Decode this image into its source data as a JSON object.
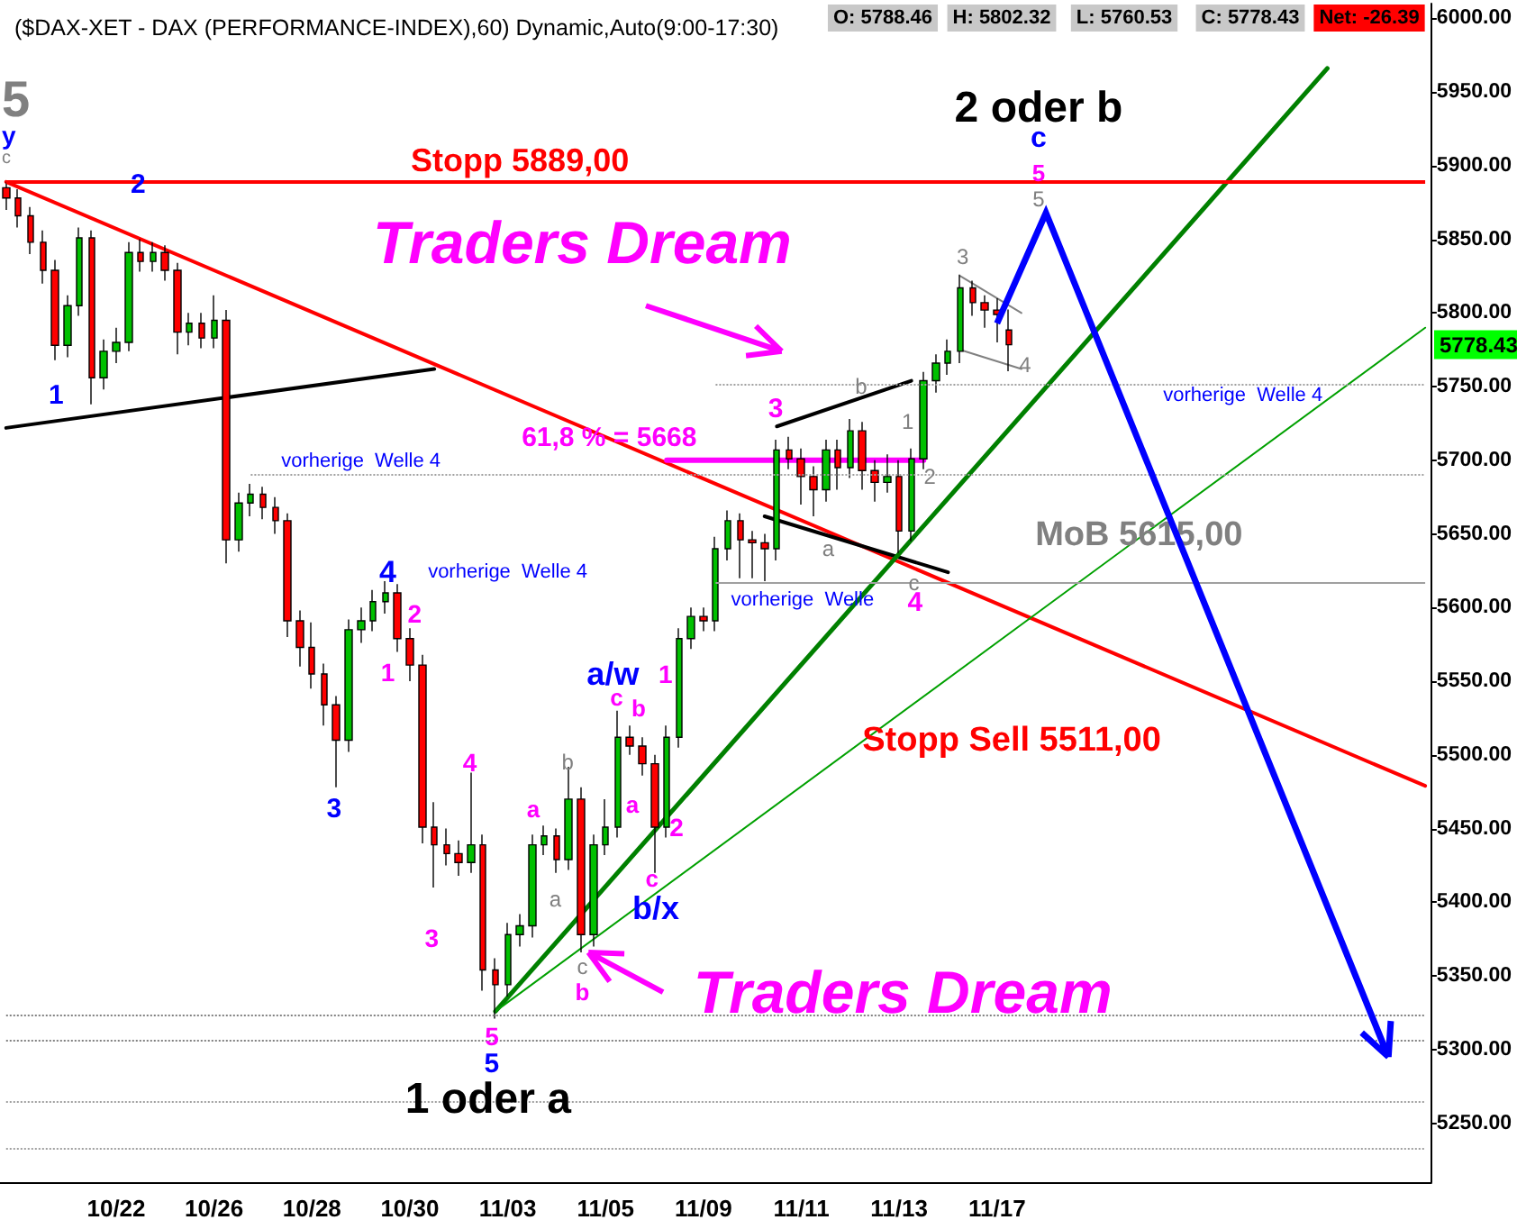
{
  "chart_data": {
    "type": "candlestick",
    "title": "($DAX-XET - DAX (PERFORMANCE-INDEX),60) Dynamic,Auto(9:00-17:30)",
    "categories": [
      null,
      null,
      null,
      null,
      null,
      null,
      null,
      null,
      null,
      "10/22",
      null,
      null,
      null,
      null,
      null,
      null,
      null,
      "10/26",
      null,
      null,
      null,
      null,
      null,
      null,
      null,
      "10/28",
      null,
      null,
      null,
      null,
      null,
      null,
      null,
      "10/30",
      null,
      null,
      null,
      null,
      null,
      null,
      null,
      "11/03",
      null,
      null,
      null,
      null,
      null,
      null,
      null,
      "11/05",
      null,
      null,
      null,
      null,
      null,
      null,
      null,
      "11/09",
      null,
      null,
      null,
      null,
      null,
      null,
      null,
      "11/11",
      null,
      null,
      null,
      null,
      null,
      null,
      null,
      "11/13",
      null,
      null,
      null,
      null,
      null,
      null,
      null,
      "11/17",
      null,
      null,
      null,
      null,
      null,
      null,
      null,
      null,
      null,
      null,
      null,
      null,
      null,
      null,
      null,
      null,
      null,
      null,
      null,
      null,
      null,
      null,
      null,
      null,
      null,
      null,
      null,
      null,
      null,
      null,
      null,
      null,
      null,
      null,
      null
    ],
    "ohlc": [
      [
        5885,
        5889,
        5870,
        5878
      ],
      [
        5878,
        5884,
        5858,
        5866
      ],
      [
        5866,
        5872,
        5840,
        5848
      ],
      [
        5848,
        5856,
        5820,
        5829
      ],
      [
        5829,
        5836,
        5768,
        5778
      ],
      [
        5778,
        5812,
        5770,
        5805
      ],
      [
        5805,
        5858,
        5798,
        5851
      ],
      [
        5851,
        5856,
        5738,
        5756
      ],
      [
        5756,
        5782,
        5748,
        5774
      ],
      [
        5774,
        5790,
        5766,
        5780
      ],
      [
        5780,
        5848,
        5774,
        5841
      ],
      [
        5841,
        5850,
        5828,
        5835
      ],
      [
        5835,
        5848,
        5828,
        5841
      ],
      [
        5841,
        5846,
        5822,
        5829
      ],
      [
        5829,
        5834,
        5772,
        5787
      ],
      [
        5787,
        5800,
        5778,
        5793
      ],
      [
        5793,
        5800,
        5776,
        5783
      ],
      [
        5783,
        5812,
        5776,
        5795
      ],
      [
        5795,
        5802,
        5630,
        5646
      ],
      [
        5646,
        5678,
        5638,
        5671
      ],
      [
        5671,
        5684,
        5662,
        5677
      ],
      [
        5677,
        5682,
        5660,
        5668
      ],
      [
        5668,
        5675,
        5650,
        5659
      ],
      [
        5659,
        5664,
        5580,
        5591
      ],
      [
        5591,
        5598,
        5560,
        5573
      ],
      [
        5573,
        5590,
        5545,
        5555
      ],
      [
        5555,
        5562,
        5520,
        5534
      ],
      [
        5534,
        5540,
        5478,
        5510
      ],
      [
        5510,
        5592,
        5502,
        5585
      ],
      [
        5585,
        5600,
        5576,
        5591
      ],
      [
        5591,
        5612,
        5584,
        5604
      ],
      [
        5604,
        5618,
        5596,
        5610
      ],
      [
        5610,
        5616,
        5570,
        5579
      ],
      [
        5579,
        5586,
        5550,
        5561
      ],
      [
        5561,
        5568,
        5440,
        5451
      ],
      [
        5451,
        5468,
        5410,
        5439
      ],
      [
        5439,
        5450,
        5425,
        5433
      ],
      [
        5433,
        5442,
        5418,
        5427
      ],
      [
        5427,
        5488,
        5420,
        5439
      ],
      [
        5439,
        5446,
        5340,
        5354
      ],
      [
        5354,
        5362,
        5321,
        5344
      ],
      [
        5344,
        5386,
        5336,
        5378
      ],
      [
        5378,
        5392,
        5370,
        5384
      ],
      [
        5384,
        5446,
        5376,
        5439
      ],
      [
        5439,
        5452,
        5432,
        5445
      ],
      [
        5445,
        5450,
        5420,
        5429
      ],
      [
        5429,
        5492,
        5422,
        5470
      ],
      [
        5470,
        5478,
        5366,
        5378
      ],
      [
        5378,
        5446,
        5370,
        5439
      ],
      [
        5439,
        5470,
        5432,
        5451
      ],
      [
        5451,
        5530,
        5444,
        5512
      ],
      [
        5512,
        5520,
        5500,
        5506
      ],
      [
        5506,
        5512,
        5486,
        5494
      ],
      [
        5494,
        5500,
        5420,
        5451
      ],
      [
        5451,
        5520,
        5444,
        5512
      ],
      [
        5512,
        5586,
        5505,
        5579
      ],
      [
        5579,
        5600,
        5572,
        5594
      ],
      [
        5594,
        5600,
        5584,
        5591
      ],
      [
        5591,
        5648,
        5584,
        5640
      ],
      [
        5640,
        5666,
        5632,
        5659
      ],
      [
        5659,
        5664,
        5620,
        5646
      ],
      [
        5646,
        5652,
        5620,
        5644
      ],
      [
        5644,
        5650,
        5618,
        5640
      ],
      [
        5640,
        5714,
        5632,
        5707
      ],
      [
        5707,
        5716,
        5694,
        5701
      ],
      [
        5701,
        5708,
        5670,
        5689
      ],
      [
        5689,
        5696,
        5662,
        5680
      ],
      [
        5680,
        5714,
        5672,
        5707
      ],
      [
        5707,
        5714,
        5680,
        5695
      ],
      [
        5695,
        5728,
        5688,
        5720
      ],
      [
        5720,
        5726,
        5680,
        5693
      ],
      [
        5693,
        5700,
        5672,
        5685
      ],
      [
        5685,
        5704,
        5678,
        5689
      ],
      [
        5689,
        5700,
        5637,
        5652
      ],
      [
        5652,
        5708,
        5645,
        5701
      ],
      [
        5701,
        5760,
        5694,
        5754
      ],
      [
        5754,
        5772,
        5746,
        5766
      ],
      [
        5766,
        5782,
        5758,
        5774
      ],
      [
        5774,
        5826,
        5766,
        5817
      ],
      [
        5817,
        5822,
        5798,
        5807
      ],
      [
        5807,
        5812,
        5790,
        5802
      ],
      [
        5802,
        5810,
        5780,
        5799
      ],
      [
        5788.46,
        5802.32,
        5760.53,
        5778.43
      ],
      null,
      null,
      null,
      null,
      null,
      null,
      null,
      null,
      null,
      null,
      null,
      null,
      null,
      null,
      null,
      null,
      null,
      null,
      null,
      null,
      null,
      null,
      null,
      null,
      null,
      null,
      null,
      null,
      null,
      null,
      null,
      null,
      null,
      null
    ],
    "series": [
      {
        "type": "line",
        "color": "#ff0000",
        "values": [
          5889,
          null,
          null,
          null,
          null,
          null,
          null,
          null,
          null,
          null,
          null,
          null,
          null,
          null,
          null,
          null,
          null,
          null,
          null,
          null,
          null,
          null,
          null,
          null,
          null,
          null,
          null,
          null,
          null,
          null,
          null,
          null,
          null,
          null,
          null,
          null,
          null,
          null,
          null,
          null,
          null,
          null,
          null,
          null,
          null,
          null,
          null,
          null,
          null,
          null,
          null,
          null,
          null,
          null,
          null,
          null,
          null,
          null,
          null,
          null,
          null,
          null,
          null,
          null,
          null,
          null,
          null,
          null,
          null,
          null,
          null,
          null,
          null,
          null,
          null,
          null,
          null,
          null,
          null,
          null,
          null,
          null,
          null,
          null,
          null,
          null,
          null,
          null,
          null,
          null,
          null,
          null,
          null,
          null,
          null,
          null,
          null,
          null,
          null,
          null,
          null,
          null,
          null,
          null,
          null,
          null,
          null,
          null,
          null,
          null,
          null,
          null,
          null,
          null,
          null,
          null,
          5479
        ]
      },
      {
        "type": "line",
        "color": "#000000",
        "values": [
          5722,
          null,
          null,
          null,
          null,
          null,
          null,
          null,
          null,
          null,
          null,
          null,
          null,
          null,
          null,
          null,
          null,
          null,
          null,
          null,
          null,
          null,
          null,
          null,
          null,
          null,
          null,
          null,
          null,
          null,
          null,
          null,
          null,
          null,
          null,
          5762,
          null,
          null,
          null,
          null,
          null,
          null,
          null,
          null,
          null,
          null,
          null,
          null,
          null,
          null,
          null,
          null,
          null,
          null,
          null,
          null,
          null,
          null,
          null,
          null,
          null,
          null,
          null,
          null,
          null,
          null,
          null,
          null,
          null,
          null,
          null,
          null,
          null,
          null,
          null,
          null,
          null,
          null,
          null,
          null,
          null,
          null,
          null,
          null,
          null,
          null,
          null,
          null,
          null,
          null,
          null,
          null,
          null,
          null,
          null,
          null,
          null,
          null,
          null,
          null,
          null,
          null,
          null,
          null,
          null,
          null,
          null,
          null,
          null,
          null,
          null,
          null,
          null,
          null,
          null,
          null,
          null
        ]
      },
      {
        "type": "line",
        "color": "#000000",
        "values": [
          null,
          null,
          null,
          null,
          null,
          null,
          null,
          null,
          null,
          null,
          null,
          null,
          null,
          null,
          null,
          null,
          null,
          null,
          null,
          null,
          null,
          null,
          null,
          null,
          null,
          null,
          null,
          null,
          null,
          null,
          null,
          null,
          null,
          null,
          null,
          null,
          null,
          null,
          null,
          null,
          null,
          null,
          null,
          null,
          null,
          null,
          null,
          null,
          null,
          null,
          null,
          null,
          null,
          null,
          null,
          null,
          null,
          null,
          null,
          null,
          null,
          null,
          null,
          5723,
          null,
          null,
          null,
          null,
          null,
          null,
          null,
          null,
          null,
          null,
          5754,
          null,
          null,
          null,
          null,
          null,
          null,
          null,
          null,
          null,
          null,
          null,
          null,
          null,
          null,
          null,
          null,
          null,
          null,
          null,
          null,
          null,
          null,
          null,
          null,
          null,
          null,
          null,
          null,
          null,
          null,
          null,
          null,
          null,
          null,
          null,
          null,
          null,
          null,
          null,
          null,
          null,
          null
        ]
      },
      {
        "type": "line",
        "color": "#000000",
        "values": [
          null,
          null,
          null,
          null,
          null,
          null,
          null,
          null,
          null,
          null,
          null,
          null,
          null,
          null,
          null,
          null,
          null,
          null,
          null,
          null,
          null,
          null,
          null,
          null,
          null,
          null,
          null,
          null,
          null,
          null,
          null,
          null,
          null,
          null,
          null,
          null,
          null,
          null,
          null,
          null,
          null,
          null,
          null,
          null,
          null,
          null,
          null,
          null,
          null,
          null,
          null,
          null,
          null,
          null,
          null,
          null,
          null,
          null,
          null,
          null,
          null,
          null,
          5662,
          null,
          null,
          null,
          null,
          null,
          null,
          null,
          null,
          null,
          null,
          null,
          null,
          null,
          null,
          5624,
          null,
          null,
          null,
          null,
          null,
          null,
          null,
          null,
          null,
          null,
          null,
          null,
          null,
          null,
          null,
          null,
          null,
          null,
          null,
          null,
          null,
          null,
          null,
          null,
          null,
          null,
          null,
          null,
          null,
          null,
          null,
          null,
          null,
          null,
          null,
          null,
          null,
          null,
          null
        ]
      },
      {
        "type": "line",
        "color": "#808080",
        "values": [
          null,
          null,
          null,
          null,
          null,
          null,
          null,
          null,
          null,
          null,
          null,
          null,
          null,
          null,
          null,
          null,
          null,
          null,
          null,
          null,
          null,
          null,
          null,
          null,
          null,
          null,
          null,
          null,
          null,
          null,
          null,
          null,
          null,
          null,
          null,
          null,
          null,
          null,
          null,
          null,
          null,
          null,
          null,
          null,
          null,
          null,
          null,
          null,
          null,
          null,
          null,
          null,
          null,
          null,
          null,
          null,
          null,
          null,
          null,
          null,
          null,
          null,
          null,
          null,
          null,
          null,
          null,
          null,
          null,
          null,
          null,
          null,
          null,
          null,
          null,
          null,
          null,
          null,
          5825,
          null,
          null,
          null,
          null,
          5800,
          null,
          null,
          null,
          null,
          null,
          null,
          null,
          null,
          null,
          null,
          null,
          null,
          null,
          null,
          null,
          null,
          null,
          null,
          null,
          null,
          null,
          null,
          null,
          null,
          null,
          null,
          null,
          null,
          null,
          null,
          null,
          null,
          null
        ]
      },
      {
        "type": "line",
        "color": "#808080",
        "values": [
          null,
          null,
          null,
          null,
          null,
          null,
          null,
          null,
          null,
          null,
          null,
          null,
          null,
          null,
          null,
          null,
          null,
          null,
          null,
          null,
          null,
          null,
          null,
          null,
          null,
          null,
          null,
          null,
          null,
          null,
          null,
          null,
          null,
          null,
          null,
          null,
          null,
          null,
          null,
          null,
          null,
          null,
          null,
          null,
          null,
          null,
          null,
          null,
          null,
          null,
          null,
          null,
          null,
          null,
          null,
          null,
          null,
          null,
          null,
          null,
          null,
          null,
          null,
          null,
          null,
          null,
          null,
          null,
          null,
          null,
          null,
          null,
          null,
          null,
          null,
          null,
          null,
          null,
          5775,
          null,
          null,
          null,
          null,
          5762,
          null,
          null,
          null,
          null,
          null,
          null,
          null,
          null,
          null,
          null,
          null,
          null,
          null,
          null,
          null,
          null,
          null,
          null,
          null,
          null,
          null,
          null,
          null,
          null,
          null,
          null,
          null,
          null,
          null,
          null,
          null,
          null,
          null
        ]
      },
      {
        "type": "line",
        "color": "#008000",
        "values": [
          null,
          null,
          null,
          null,
          null,
          null,
          null,
          null,
          null,
          null,
          null,
          null,
          null,
          null,
          null,
          null,
          null,
          null,
          null,
          null,
          null,
          null,
          null,
          null,
          null,
          null,
          null,
          null,
          null,
          null,
          null,
          null,
          null,
          null,
          null,
          null,
          null,
          null,
          null,
          null,
          5326,
          null,
          null,
          null,
          null,
          null,
          null,
          null,
          null,
          null,
          null,
          null,
          null,
          null,
          null,
          null,
          null,
          null,
          null,
          null,
          null,
          null,
          null,
          null,
          null,
          null,
          null,
          null,
          null,
          null,
          null,
          null,
          null,
          null,
          null,
          null,
          null,
          null,
          null,
          null,
          null,
          null,
          null,
          null,
          null,
          null,
          null,
          null,
          null,
          null,
          null,
          null,
          null,
          null,
          null,
          null,
          null,
          null,
          null,
          null,
          null,
          null,
          null,
          null,
          null,
          null,
          null,
          null,
          5966,
          null,
          null,
          null,
          null,
          null,
          null,
          null,
          null
        ]
      },
      {
        "type": "line",
        "color": "#00a000",
        "values": [
          null,
          null,
          null,
          null,
          null,
          null,
          null,
          null,
          null,
          null,
          null,
          null,
          null,
          null,
          null,
          null,
          null,
          null,
          null,
          null,
          null,
          null,
          null,
          null,
          null,
          null,
          null,
          null,
          null,
          null,
          null,
          null,
          null,
          null,
          null,
          null,
          null,
          null,
          null,
          null,
          5326,
          null,
          null,
          null,
          null,
          null,
          null,
          null,
          null,
          null,
          null,
          null,
          null,
          null,
          null,
          null,
          null,
          null,
          null,
          null,
          null,
          null,
          null,
          null,
          null,
          null,
          null,
          null,
          null,
          null,
          null,
          null,
          null,
          null,
          null,
          null,
          null,
          null,
          null,
          null,
          null,
          null,
          null,
          null,
          null,
          null,
          null,
          null,
          null,
          null,
          null,
          null,
          null,
          null,
          null,
          null,
          null,
          null,
          null,
          null,
          null,
          null,
          null,
          null,
          null,
          null,
          null,
          null,
          null,
          null,
          null,
          null,
          null,
          null,
          null,
          null,
          5790
        ]
      },
      {
        "type": "line",
        "color": "#ff00ff",
        "values": [
          null,
          null,
          null,
          null,
          null,
          null,
          null,
          null,
          null,
          null,
          null,
          null,
          null,
          null,
          null,
          null,
          null,
          null,
          null,
          null,
          null,
          null,
          null,
          null,
          null,
          null,
          null,
          null,
          null,
          null,
          null,
          null,
          null,
          null,
          null,
          null,
          null,
          null,
          null,
          null,
          null,
          null,
          null,
          null,
          null,
          null,
          null,
          null,
          null,
          null,
          null,
          null,
          null,
          null,
          5700,
          null,
          null,
          null,
          null,
          null,
          null,
          null,
          null,
          null,
          null,
          null,
          null,
          null,
          null,
          null,
          null,
          null,
          null,
          null,
          null,
          5700,
          null,
          null,
          null,
          null,
          null,
          null,
          null,
          null,
          null,
          null,
          null,
          null,
          null,
          null,
          null,
          null,
          null,
          null,
          null,
          null,
          null,
          null,
          null,
          null,
          null,
          null,
          null,
          null,
          null,
          null,
          null,
          null,
          null,
          null,
          null,
          null,
          null,
          null,
          null,
          null,
          null
        ]
      }
    ],
    "ref_lines": [
      {
        "axis": "y",
        "value": 5889,
        "label": "Stopp 5889,00",
        "color": "#ff0000",
        "line_style": "solid"
      },
      {
        "axis": "y",
        "value": 5752,
        "color": "#a0a0a0",
        "line_style": "dotted"
      },
      {
        "axis": "y",
        "value": 5691,
        "color": "#a0a0a0",
        "line_style": "dotted"
      },
      {
        "axis": "y",
        "value": 5617,
        "color": "#a0a0a0",
        "line_style": "solid"
      },
      {
        "axis": "y",
        "value": 5324,
        "color": "#808080",
        "line_style": "dotted"
      },
      {
        "axis": "y",
        "value": 5306,
        "color": "#808080",
        "line_style": "dotted"
      },
      {
        "axis": "y",
        "value": 5265,
        "color": "#a0a0a0",
        "line_style": "dotted"
      },
      {
        "axis": "y",
        "value": 5233,
        "color": "#a0a0a0",
        "line_style": "dotted"
      }
    ],
    "annotations": [
      "O: 5788.46",
      "H: 5802.32",
      "L: 5760.53",
      "C: 5778.43",
      "Net: -26.39",
      "5778.43",
      "5",
      "y",
      "c",
      "2",
      "1",
      "4",
      "vorherige  Welle 4",
      "vorherige  Welle 4",
      "vorherige  Welle 4",
      "vorherige  Welle",
      "2",
      "1",
      "3",
      "4",
      "3",
      "5",
      "5",
      "1 oder a",
      "a",
      "a",
      "b",
      "c",
      "b",
      "a/w",
      "c",
      "b",
      "a",
      "1",
      "2",
      "c",
      "b/x",
      "3",
      "b",
      "a",
      "1",
      "2",
      "c",
      "4",
      "3",
      "4",
      "5",
      "5",
      "c",
      "2 oder b",
      "61,8 % = 5668",
      "MoB 5615,00",
      "Stopp Sell 5511,00",
      "Traders Dream",
      "Traders Dream"
    ],
    "ylim": [
      5210,
      6010
    ],
    "yticks": [
      {
        "value": 5250,
        "label": "5250.00"
      },
      {
        "value": 5300,
        "label": "5300.00"
      },
      {
        "value": 5350,
        "label": "5350.00"
      },
      {
        "value": 5400,
        "label": "5400.00"
      },
      {
        "value": 5450,
        "label": "5450.00"
      },
      {
        "value": 5500,
        "label": "5500.00"
      },
      {
        "value": 5550,
        "label": "5550.00"
      },
      {
        "value": 5600,
        "label": "5600.00"
      },
      {
        "value": 5650,
        "label": "5650.00"
      },
      {
        "value": 5700,
        "label": "5700.00"
      },
      {
        "value": 5750,
        "label": "5750.00"
      },
      {
        "value": 5800,
        "label": "5800.00"
      },
      {
        "value": 5850,
        "label": "5850.00"
      },
      {
        "value": 5900,
        "label": "5900.00"
      },
      {
        "value": 5950,
        "label": "5950.00"
      },
      {
        "value": 6000,
        "label": "6000.00"
      }
    ]
  }
}
